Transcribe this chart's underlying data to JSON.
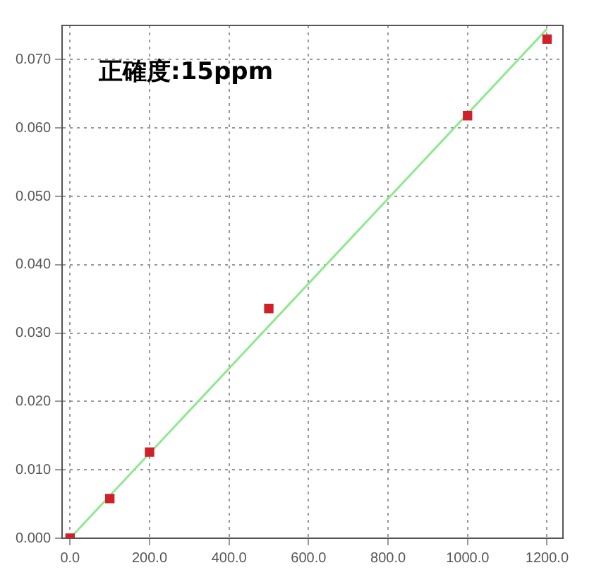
{
  "chart_data": {
    "type": "scatter",
    "x": [
      0,
      100,
      200,
      500,
      1000,
      1200
    ],
    "series": [
      {
        "marker": "square",
        "color": "#d0202a",
        "values": [
          0.0,
          0.0058,
          0.0126,
          0.0336,
          0.0618,
          0.073
        ]
      },
      {
        "type": "line",
        "color": "#90e890",
        "x": [
          0,
          1200
        ],
        "values": [
          0,
          0.0745
        ]
      }
    ],
    "annotations": [
      "正確度:15ppm"
    ],
    "xlim": [
      -20,
      1240
    ],
    "xticks": [
      {
        "value": 0,
        "label": "0.0"
      },
      {
        "value": 200,
        "label": "200.0"
      },
      {
        "value": 400,
        "label": "400.0"
      },
      {
        "value": 600,
        "label": "600.0"
      },
      {
        "value": 800,
        "label": "800.0"
      },
      {
        "value": 1000,
        "label": "1000.0"
      },
      {
        "value": 1200,
        "label": "1200.0"
      }
    ],
    "ylim": [
      0,
      0.075
    ],
    "yticks": [
      {
        "value": 0,
        "label": "0.000"
      },
      {
        "value": 0.01,
        "label": "0.010"
      },
      {
        "value": 0.02,
        "label": "0.020"
      },
      {
        "value": 0.03,
        "label": "0.030"
      },
      {
        "value": 0.04,
        "label": "0.040"
      },
      {
        "value": 0.05,
        "label": "0.050"
      },
      {
        "value": 0.06,
        "label": "0.060"
      },
      {
        "value": 0.07,
        "label": "0.070"
      }
    ],
    "grid": true,
    "legend": false
  }
}
